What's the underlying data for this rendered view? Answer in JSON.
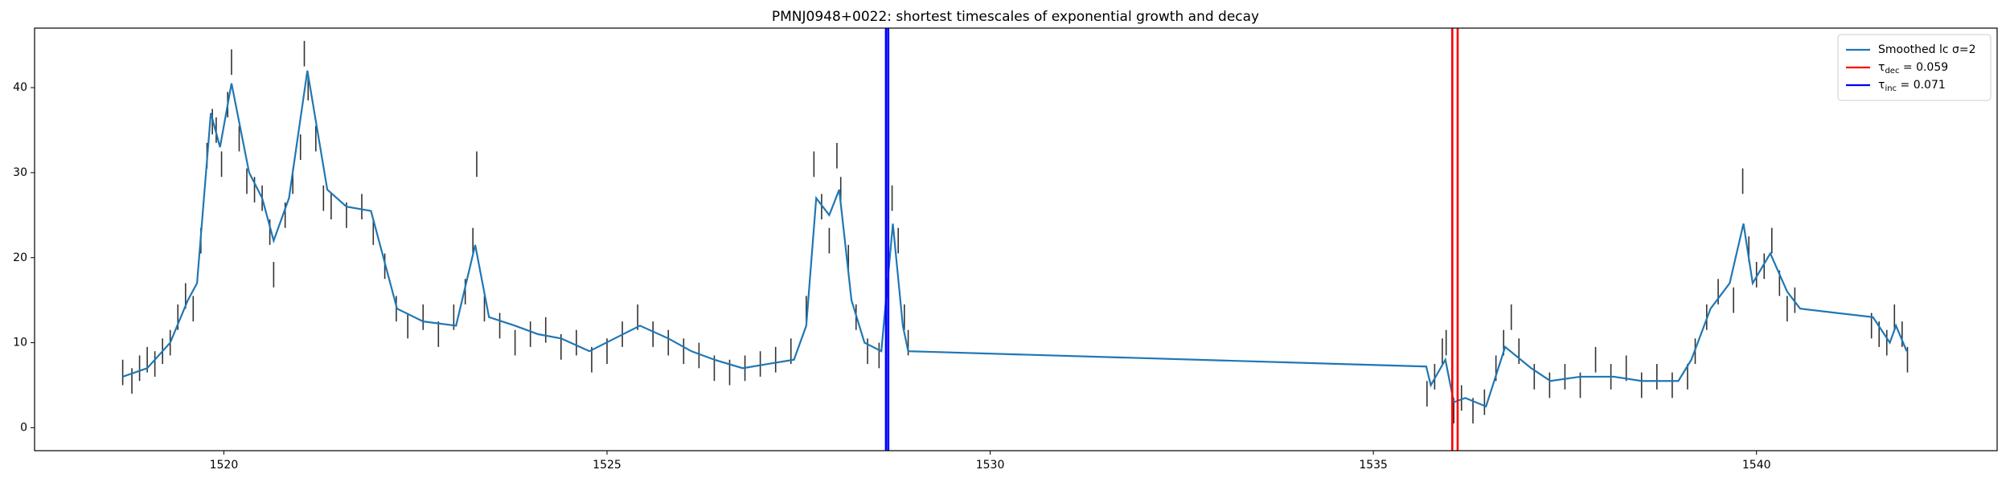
{
  "chart_data": {
    "type": "line",
    "title": "PMNJ0948+0022: shortest timescales of exponential growth and decay",
    "xlim": [
      1517.53,
      1543.14
    ],
    "ylim": [
      -2.7,
      47
    ],
    "xticks": [
      1520,
      1525,
      1530,
      1535,
      1540
    ],
    "yticks": [
      0,
      10,
      20,
      30,
      40
    ],
    "legend": "upper right",
    "series": [
      {
        "name": "Smoothed lc σ=2",
        "color": "#1f77b4",
        "x": [
          1518.68,
          1519.0,
          1519.3,
          1519.53,
          1519.65,
          1519.83,
          1519.95,
          1520.1,
          1520.33,
          1520.5,
          1520.65,
          1520.85,
          1521.09,
          1521.35,
          1521.6,
          1521.92,
          1522.26,
          1522.6,
          1523.03,
          1523.28,
          1523.46,
          1523.8,
          1524.1,
          1524.4,
          1524.77,
          1525.1,
          1525.43,
          1525.8,
          1526.1,
          1526.4,
          1526.77,
          1527.1,
          1527.44,
          1527.6,
          1527.73,
          1527.9,
          1528.03,
          1528.19,
          1528.36,
          1528.58,
          1528.73,
          1528.86,
          1528.93,
          1535.69,
          1535.75,
          1535.94,
          1536.05,
          1536.2,
          1536.47,
          1536.72,
          1537.06,
          1537.31,
          1537.7,
          1538.14,
          1538.5,
          1538.98,
          1539.15,
          1539.4,
          1539.65,
          1539.83,
          1539.95,
          1540.18,
          1540.4,
          1540.57,
          1541.52,
          1541.74,
          1541.82,
          1541.96
        ],
        "values": [
          6,
          7,
          10,
          15,
          17,
          37,
          33,
          40.5,
          30,
          27,
          22,
          27,
          42,
          28,
          26,
          25.5,
          14,
          12.5,
          12,
          21.5,
          13,
          12,
          11,
          10.5,
          9,
          10.5,
          12,
          10.5,
          9,
          8,
          7,
          7.5,
          8,
          12,
          27,
          25,
          28,
          15,
          10,
          9,
          24,
          12,
          9,
          7.2,
          5,
          8,
          3,
          3.5,
          2.5,
          9.5,
          7,
          5.5,
          6,
          6,
          5.5,
          5.5,
          8,
          14,
          17,
          24,
          17,
          20.5,
          16,
          14,
          13,
          10,
          12,
          9
        ]
      }
    ],
    "points": {
      "color": "#333333",
      "error": 1.5,
      "x": [
        1518.68,
        1518.8,
        1518.9,
        1519.0,
        1519.1,
        1519.2,
        1519.3,
        1519.4,
        1519.5,
        1519.6,
        1519.7,
        1519.78,
        1519.85,
        1519.9,
        1519.97,
        1520.05,
        1520.1,
        1520.2,
        1520.3,
        1520.4,
        1520.5,
        1520.6,
        1520.65,
        1520.8,
        1520.9,
        1521.0,
        1521.05,
        1521.1,
        1521.2,
        1521.3,
        1521.4,
        1521.6,
        1521.8,
        1521.95,
        1522.1,
        1522.25,
        1522.4,
        1522.6,
        1522.8,
        1523.0,
        1523.15,
        1523.25,
        1523.3,
        1523.4,
        1523.6,
        1523.8,
        1524.0,
        1524.2,
        1524.4,
        1524.6,
        1524.8,
        1525.0,
        1525.2,
        1525.4,
        1525.6,
        1525.8,
        1526.0,
        1526.2,
        1526.4,
        1526.6,
        1526.8,
        1527.0,
        1527.2,
        1527.4,
        1527.6,
        1527.7,
        1527.8,
        1527.9,
        1528.0,
        1528.05,
        1528.15,
        1528.25,
        1528.4,
        1528.55,
        1528.72,
        1528.8,
        1528.88,
        1528.93,
        1535.7,
        1535.8,
        1535.9,
        1535.95,
        1536.05,
        1536.15,
        1536.3,
        1536.45,
        1536.6,
        1536.7,
        1536.8,
        1536.9,
        1537.1,
        1537.3,
        1537.5,
        1537.7,
        1537.9,
        1538.1,
        1538.3,
        1538.5,
        1538.7,
        1538.9,
        1539.1,
        1539.2,
        1539.35,
        1539.5,
        1539.7,
        1539.82,
        1539.9,
        1540.0,
        1540.1,
        1540.2,
        1540.3,
        1540.4,
        1540.5,
        1541.5,
        1541.6,
        1541.7,
        1541.8,
        1541.9,
        1541.97
      ],
      "values": [
        6.5,
        5.5,
        7,
        8,
        7.5,
        9,
        10,
        13,
        15.5,
        14,
        22,
        32,
        36,
        35,
        31,
        38,
        43,
        34,
        29,
        28,
        27,
        23,
        18,
        25,
        29,
        33,
        44,
        40,
        34,
        27,
        26,
        25,
        26,
        23,
        19,
        14,
        12,
        13,
        11,
        13,
        16,
        22,
        31,
        14,
        12,
        10,
        11,
        11.5,
        9.5,
        10,
        8,
        9,
        11,
        13,
        11,
        10,
        9,
        8.5,
        7,
        6.5,
        7,
        7.5,
        8,
        9,
        14,
        31,
        26,
        22,
        32,
        28,
        20,
        13,
        9,
        8.5,
        27,
        22,
        13,
        10,
        4,
        6,
        9,
        10,
        2,
        3.5,
        2,
        3,
        7,
        10,
        13,
        9,
        6,
        5,
        6,
        5,
        8,
        6,
        7,
        5,
        6,
        5,
        6,
        9,
        13,
        16,
        15,
        29,
        21,
        18,
        19,
        22,
        17,
        14,
        15,
        12,
        11,
        10,
        13,
        11,
        8
      ]
    },
    "vlines": [
      {
        "name": "τdec = 0.059",
        "color": "#ff0000",
        "x": [
          1536.03,
          1536.1
        ]
      },
      {
        "name": "τinc = 0.071",
        "color": "#0000ff",
        "x": [
          1528.64,
          1528.67
        ]
      }
    ]
  }
}
